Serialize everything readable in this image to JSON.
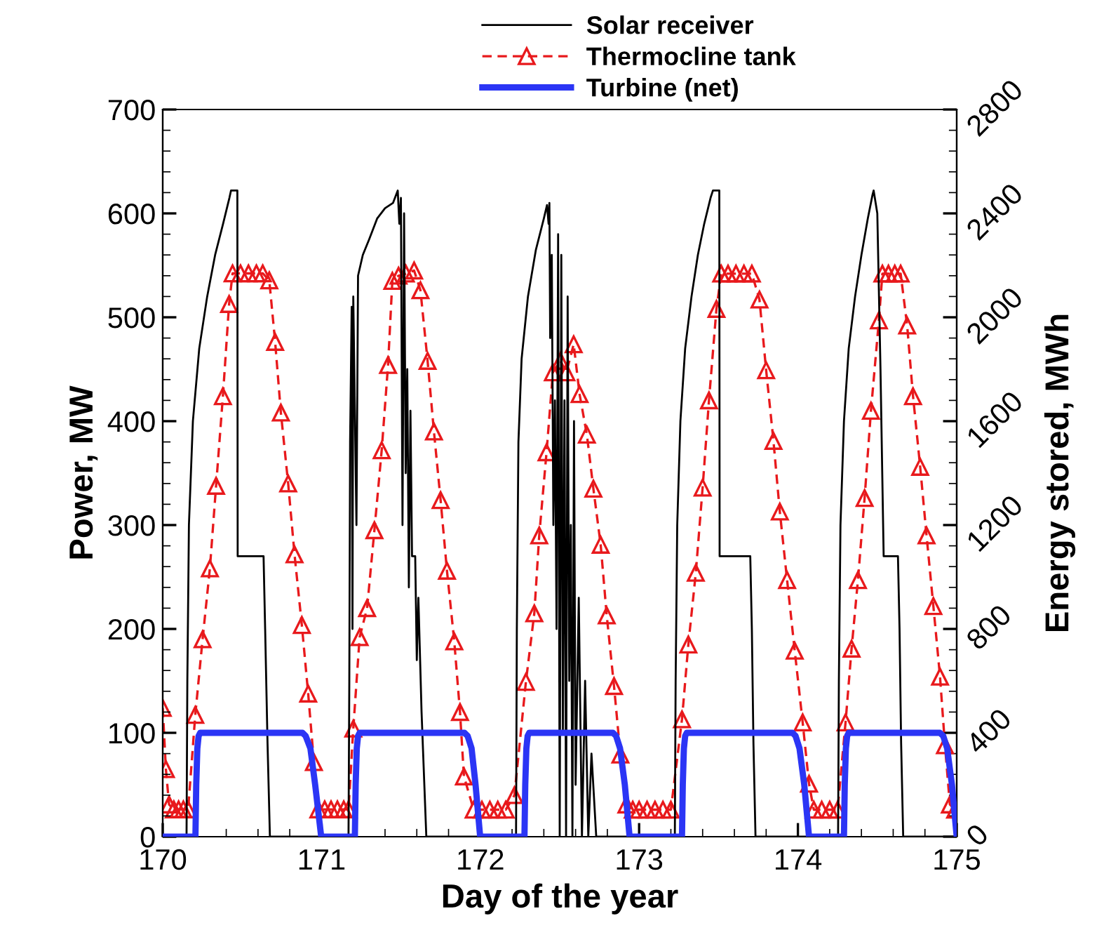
{
  "chart_data": {
    "type": "line",
    "xlabel": "Day of the year",
    "ylabel": "Power, MW",
    "y2label": "Energy stored, MWh",
    "xlim": [
      170,
      175
    ],
    "xticks": [
      170,
      171,
      172,
      173,
      174,
      175
    ],
    "ylim": [
      0,
      700
    ],
    "yticks": [
      0,
      100,
      200,
      300,
      400,
      500,
      600,
      700
    ],
    "y2lim": [
      0,
      2800
    ],
    "y2ticks": [
      0,
      400,
      800,
      1200,
      1600,
      2000,
      2400,
      2800
    ],
    "grid": false,
    "legend": "top",
    "series": [
      {
        "name": "Solar receiver",
        "color": "#000000",
        "line_style": "solid",
        "marker": "none",
        "axis": "y",
        "x": [
          170.0,
          170.15,
          170.155,
          170.165,
          170.19,
          170.23,
          170.28,
          170.33,
          170.38,
          170.42,
          170.43,
          170.47,
          170.472,
          170.635,
          170.645,
          170.66,
          170.675,
          171.17,
          171.175,
          171.18,
          171.19,
          171.195,
          171.2,
          171.22,
          171.23,
          171.26,
          171.3,
          171.35,
          171.4,
          171.45,
          171.48,
          171.49,
          171.5,
          171.51,
          171.52,
          171.53,
          171.54,
          171.55,
          171.56,
          171.57,
          171.59,
          171.6,
          171.61,
          171.63,
          171.66,
          172.225,
          172.23,
          172.24,
          172.26,
          172.3,
          172.35,
          172.4,
          172.42,
          172.43,
          172.435,
          172.44,
          172.45,
          172.46,
          172.47,
          172.48,
          172.49,
          172.5,
          172.51,
          172.52,
          172.53,
          172.54,
          172.55,
          172.56,
          172.57,
          172.58,
          172.59,
          172.6,
          172.62,
          172.64,
          172.66,
          172.68,
          172.7,
          172.73,
          173.225,
          173.23,
          173.24,
          173.26,
          173.29,
          173.33,
          173.37,
          173.41,
          173.45,
          173.465,
          173.505,
          173.507,
          173.7,
          173.71,
          173.72,
          173.733,
          174.253,
          174.258,
          174.268,
          174.29,
          174.32,
          174.36,
          174.4,
          174.44,
          174.47,
          174.477,
          174.5,
          174.52,
          174.54,
          174.63,
          174.64,
          174.65,
          174.663,
          175.0
        ],
        "values": [
          0,
          0,
          150,
          300,
          400,
          470,
          520,
          560,
          590,
          615,
          622,
          622,
          270,
          270,
          200,
          90,
          0,
          0,
          150,
          380,
          510,
          200,
          520,
          300,
          540,
          560,
          575,
          595,
          605,
          610,
          622,
          590,
          615,
          300,
          600,
          350,
          450,
          240,
          410,
          270,
          270,
          170,
          230,
          120,
          0,
          0,
          200,
          380,
          460,
          520,
          565,
          595,
          608,
          590,
          610,
          480,
          560,
          300,
          420,
          200,
          580,
          0,
          560,
          100,
          420,
          0,
          520,
          150,
          300,
          0,
          400,
          50,
          230,
          0,
          150,
          0,
          80,
          0,
          0,
          150,
          300,
          400,
          470,
          520,
          560,
          590,
          615,
          622,
          622,
          270,
          270,
          200,
          90,
          0,
          0,
          150,
          300,
          400,
          470,
          520,
          560,
          595,
          618,
          622,
          600,
          450,
          270,
          270,
          200,
          90,
          0,
          0
        ]
      },
      {
        "name": "Thermocline tank",
        "color": "#e8191c",
        "line_style": "dashed",
        "marker": "triangle",
        "axis": "y2",
        "x": [
          170.0,
          170.02,
          170.04,
          170.07,
          170.1,
          170.13,
          170.16,
          170.205,
          170.251,
          170.297,
          170.336,
          170.379,
          170.418,
          170.44,
          170.49,
          170.54,
          170.59,
          170.63,
          170.671,
          170.708,
          170.744,
          170.79,
          170.83,
          170.876,
          170.916,
          170.952,
          170.98,
          171.02,
          171.06,
          171.1,
          171.14,
          171.17,
          171.2,
          171.24,
          171.287,
          171.333,
          171.379,
          171.419,
          171.446,
          171.485,
          171.531,
          171.583,
          171.623,
          171.668,
          171.708,
          171.75,
          171.79,
          171.836,
          171.872,
          171.897,
          171.958,
          172.01,
          172.06,
          172.11,
          172.16,
          172.215,
          172.287,
          172.34,
          172.371,
          172.417,
          172.457,
          172.505,
          172.542,
          172.588,
          172.625,
          172.671,
          172.712,
          172.758,
          172.796,
          172.842,
          172.882,
          172.92,
          172.96,
          173.0,
          173.05,
          173.1,
          173.15,
          173.2,
          173.27,
          173.31,
          173.357,
          173.4,
          173.44,
          173.487,
          173.517,
          173.56,
          173.61,
          173.66,
          173.71,
          173.758,
          173.8,
          173.846,
          173.886,
          173.932,
          173.98,
          174.03,
          174.07,
          174.1,
          174.15,
          174.2,
          174.25,
          174.3,
          174.338,
          174.378,
          174.42,
          174.46,
          174.51,
          174.532,
          174.57,
          174.61,
          174.647,
          174.688,
          174.725,
          174.77,
          174.81,
          174.853,
          174.895,
          174.926,
          174.957,
          174.99
        ],
        "values": [
          496,
          260,
          124,
          105,
          105,
          105,
          105,
          469,
          760,
          1033,
          1351,
          1696,
          2051,
          2169,
          2169,
          2169,
          2169,
          2169,
          2142,
          1905,
          1633,
          1360,
          1087,
          815,
          551,
          287,
          105,
          105,
          105,
          105,
          105,
          105,
          416,
          768,
          880,
          1180,
          1488,
          1816,
          2140,
          2160,
          2168,
          2180,
          2104,
          1832,
          1560,
          1296,
          1024,
          752,
          480,
          232,
          104,
          104,
          104,
          104,
          104,
          160,
          596,
          860,
          1160,
          1480,
          1788,
          1832,
          1788,
          1896,
          1704,
          1548,
          1340,
          1124,
          852,
          580,
          316,
          124,
          104,
          104,
          104,
          104,
          104,
          104,
          452,
          740,
          1016,
          1344,
          1680,
          2032,
          2168,
          2168,
          2168,
          2168,
          2168,
          2068,
          1796,
          1524,
          1252,
          988,
          716,
          440,
          204,
          104,
          104,
          104,
          104,
          440,
          724,
          988,
          1304,
          1640,
          1988,
          2168,
          2168,
          2168,
          2168,
          1968,
          1696,
          1424,
          1160,
          888,
          616,
          352,
          124,
          104
        ]
      },
      {
        "name": "Turbine (net)",
        "color": "#2b35f5",
        "line_style": "solid",
        "marker": "none",
        "axis": "y",
        "x": [
          170.0,
          170.206,
          170.211,
          170.218,
          170.226,
          170.236,
          170.88,
          170.9,
          170.93,
          170.96,
          170.998,
          171.21,
          171.215,
          171.222,
          171.23,
          171.24,
          171.9,
          171.92,
          171.945,
          171.97,
          171.999,
          172.278,
          172.283,
          172.29,
          172.298,
          172.308,
          172.835,
          172.855,
          172.88,
          172.91,
          172.94,
          173.27,
          173.275,
          173.282,
          173.29,
          173.3,
          173.966,
          173.985,
          174.01,
          174.04,
          174.07,
          174.29,
          174.295,
          174.302,
          174.31,
          174.32,
          174.894,
          174.915,
          174.94,
          174.97,
          175.0
        ],
        "values": [
          0,
          0,
          50,
          85,
          97,
          100,
          100,
          97,
          85,
          50,
          0,
          0,
          50,
          85,
          97,
          100,
          100,
          97,
          85,
          50,
          0,
          0,
          50,
          85,
          97,
          100,
          100,
          97,
          85,
          50,
          0,
          0,
          50,
          85,
          97,
          100,
          100,
          97,
          85,
          50,
          0,
          0,
          50,
          85,
          97,
          100,
          100,
          97,
          85,
          50,
          0
        ]
      }
    ]
  }
}
